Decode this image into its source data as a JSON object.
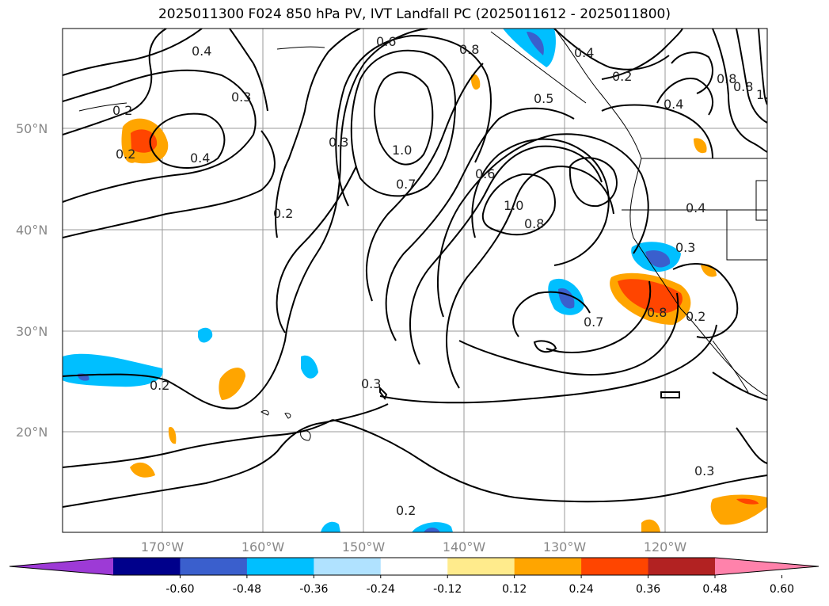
{
  "title": "2025011300 F024 850 hPa PV, IVT Landfall PC (2025011612 - 2025011800)",
  "lat_labels": [
    "50°N",
    "40°N",
    "30°N",
    "20°N"
  ],
  "lon_labels": [
    "170°W",
    "160°W",
    "150°W",
    "140°W",
    "130°W",
    "120°W"
  ],
  "contour_labels": [
    "0.4",
    "0.6",
    "0.8",
    "0.4",
    "0.2",
    "0.3",
    "0.2",
    "0.4",
    "0.2",
    "1.0",
    "0.7",
    "0.3",
    "0.6",
    "1.0",
    "0.8",
    "0.2",
    "0.4",
    "0.3",
    "0.7",
    "0.8",
    "0.2",
    "0.3",
    "0.2",
    "0.2",
    "0.8",
    "1.0",
    "0.4",
    "0.5",
    "0.8",
    "0.3"
  ],
  "colorbar": {
    "colors": [
      "#9d3ad6",
      "#00008b",
      "#3a5fcd",
      "#00bfff",
      "#b0e2ff",
      "#ffffff",
      "#ffeb8c",
      "#ffa500",
      "#ff4500",
      "#b22222",
      "#ff82ab"
    ],
    "tick_labels": [
      "-0.60",
      "-0.48",
      "-0.36",
      "-0.24",
      "-0.12",
      "0.12",
      "0.24",
      "0.36",
      "0.48",
      "0.60"
    ]
  }
}
